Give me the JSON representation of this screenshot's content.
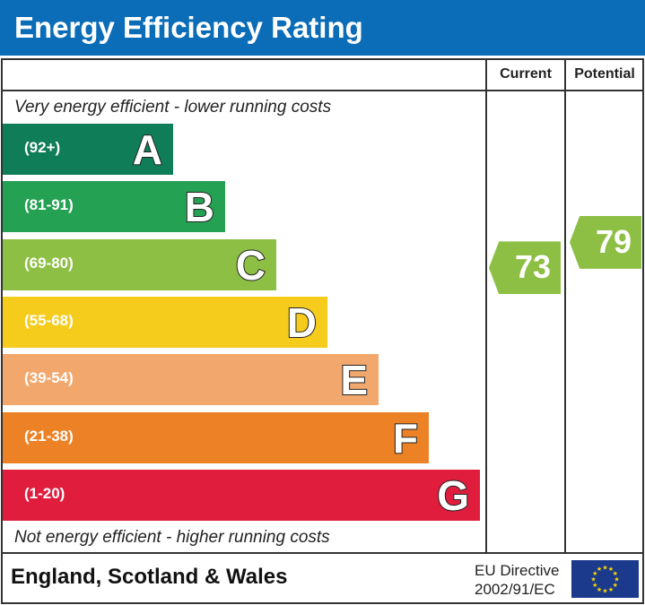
{
  "title": "Energy Efficiency Rating",
  "columns": {
    "current": "Current",
    "potential": "Potential"
  },
  "top_note": "Very energy efficient - lower running costs",
  "bottom_note": "Not energy efficient - higher running costs",
  "footer": {
    "region": "England, Scotland & Wales",
    "directive_line1": "EU Directive",
    "directive_line2": "2002/91/EC",
    "flag_icon": "eu-flag-icon"
  },
  "chart_data": {
    "type": "bar",
    "categories": [
      "A",
      "B",
      "C",
      "D",
      "E",
      "F",
      "G"
    ],
    "ranges": [
      "(92+)",
      "(81-91)",
      "(69-80)",
      "(55-68)",
      "(39-54)",
      "(21-38)",
      "(1-20)"
    ],
    "band_bounds": [
      [
        92,
        100
      ],
      [
        81,
        91
      ],
      [
        69,
        80
      ],
      [
        55,
        68
      ],
      [
        39,
        54
      ],
      [
        21,
        38
      ],
      [
        1,
        20
      ]
    ],
    "colors": [
      "#0f7d58",
      "#25a153",
      "#8dbf44",
      "#f5cb1c",
      "#f2a86d",
      "#ec8126",
      "#e11d3e"
    ],
    "current": {
      "value": 73,
      "band": "C",
      "color": "#8dbf44"
    },
    "potential": {
      "value": 79,
      "band": "C",
      "color": "#8dbf44"
    }
  }
}
